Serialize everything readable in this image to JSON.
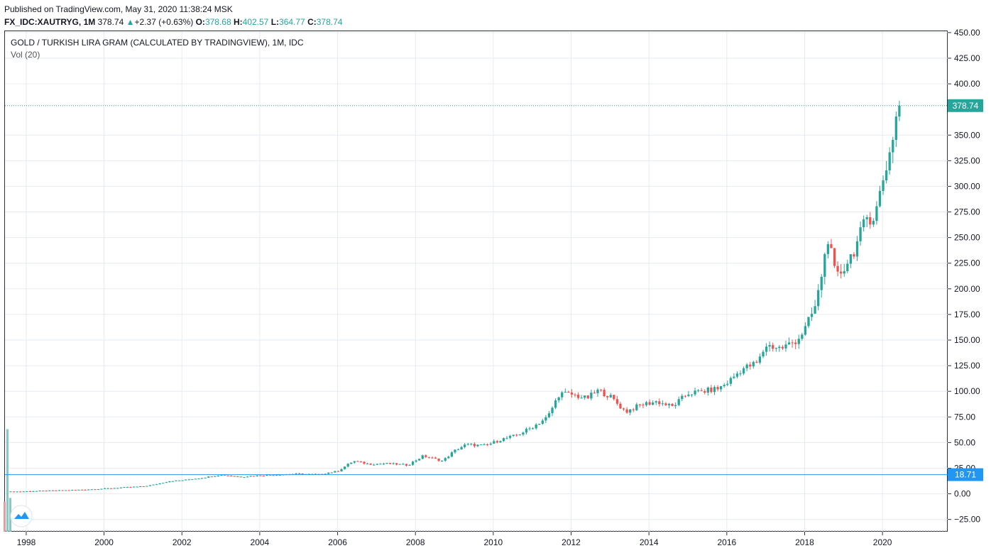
{
  "header": {
    "published": "Published on TradingView.com, May 31, 2020 11:38:24 MSK",
    "symbol": "FX_IDC:XAUTRYG, 1M",
    "last": "378.74",
    "change_arrow": "▲",
    "change": "+2.37 (+0.63%)",
    "open_label": "O:",
    "open": "378.68",
    "high_label": "H:",
    "high": "402.57",
    "low_label": "L:",
    "low": "364.77",
    "close_label": "C:",
    "close": "378.74"
  },
  "legend": {
    "title": "GOLD / TURKISH LIRA GRAM (CALCULATED BY TRADINGVIEW), 1M, IDC",
    "volume": "Vol (20)"
  },
  "badges": {
    "last_price": "378.74",
    "hline": "18.71"
  },
  "colors": {
    "up": "#26a69a",
    "down": "#ef5350",
    "grid": "#e6ebf0",
    "hline": "#2196f3",
    "last_line": "#26a69a",
    "vol_up": "#80cbc4",
    "vol_down": "#ef9a9a"
  },
  "chart_data": {
    "type": "candlestick",
    "x_ticks": [
      "1998",
      "2000",
      "2002",
      "2004",
      "2006",
      "2008",
      "2010",
      "2012",
      "2014",
      "2016",
      "2018",
      "2020"
    ],
    "y_ticks": [
      "450.00",
      "425.00",
      "400.00",
      "350.00",
      "325.00",
      "300.00",
      "275.00",
      "250.00",
      "225.00",
      "200.00",
      "175.00",
      "150.00",
      "125.00",
      "100.00",
      "75.00",
      "50.00",
      "25.00",
      "0.00",
      "−25.00"
    ],
    "ylim": [
      -37,
      452
    ],
    "horizontal_line": 18.71,
    "last_price": 378.74,
    "series": [
      {
        "values": [
          [
            1997.6,
            2.0
          ],
          [
            1998.0,
            2.4
          ],
          [
            1998.5,
            2.9
          ],
          [
            1999.0,
            3.4
          ],
          [
            1999.5,
            4.1
          ],
          [
            2000.0,
            5.0
          ],
          [
            2000.5,
            6.2
          ],
          [
            2001.0,
            7.2
          ],
          [
            2001.3,
            9.0
          ],
          [
            2001.7,
            12.5
          ],
          [
            2002.0,
            13.2
          ],
          [
            2002.5,
            15.5
          ],
          [
            2003.0,
            18.5
          ],
          [
            2003.5,
            16.5
          ],
          [
            2004.0,
            18.0
          ],
          [
            2004.5,
            18.7
          ],
          [
            2005.0,
            19.5
          ],
          [
            2005.5,
            18.8
          ],
          [
            2006.0,
            22.0
          ],
          [
            2006.4,
            32.0
          ],
          [
            2006.8,
            29.0
          ],
          [
            2007.3,
            29.5
          ],
          [
            2007.8,
            28.0
          ],
          [
            2008.2,
            37.0
          ],
          [
            2008.7,
            32.0
          ],
          [
            2009.0,
            42.0
          ],
          [
            2009.3,
            48.0
          ],
          [
            2009.8,
            47.0
          ],
          [
            2010.2,
            53.0
          ],
          [
            2010.6,
            57.0
          ],
          [
            2011.0,
            65.0
          ],
          [
            2011.4,
            75.0
          ],
          [
            2011.7,
            98.0
          ],
          [
            2012.0,
            97.0
          ],
          [
            2012.4,
            93.0
          ],
          [
            2012.7,
            101.0
          ],
          [
            2013.0,
            95.0
          ],
          [
            2013.4,
            80.0
          ],
          [
            2013.8,
            87.0
          ],
          [
            2014.2,
            90.0
          ],
          [
            2014.6,
            85.0
          ],
          [
            2015.0,
            98.0
          ],
          [
            2015.4,
            100.0
          ],
          [
            2015.8,
            103.0
          ],
          [
            2016.0,
            108.0
          ],
          [
            2016.4,
            122.0
          ],
          [
            2016.8,
            128.0
          ],
          [
            2017.0,
            145.0
          ],
          [
            2017.4,
            142.0
          ],
          [
            2017.8,
            150.0
          ],
          [
            2018.0,
            160.0
          ],
          [
            2018.3,
            185.0
          ],
          [
            2018.6,
            250.0
          ],
          [
            2018.8,
            210.0
          ],
          [
            2019.0,
            220.0
          ],
          [
            2019.3,
            240.0
          ],
          [
            2019.6,
            270.0
          ],
          [
            2019.8,
            270.0
          ],
          [
            2020.0,
            305.0
          ],
          [
            2020.2,
            335.0
          ],
          [
            2020.4,
            378.74
          ]
        ]
      }
    ]
  }
}
